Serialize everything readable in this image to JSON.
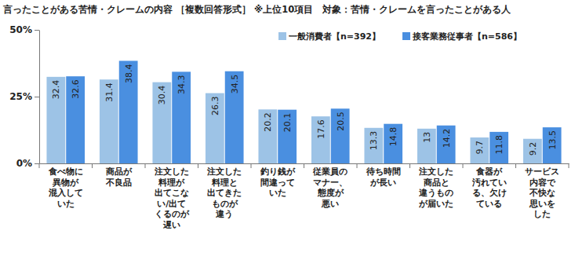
{
  "chart_data": {
    "type": "bar",
    "title": "言ったことがある苦情・クレームの内容 ［複数回答形式］ ※上位10項目　対象：苦情・クレームを言ったことがある人",
    "categories": [
      "食べ物に\n異物が\n混入して\nいた",
      "商品が\n不良品",
      "注文した\n料理が\n出てこな\nい/出て\nくるのが\n遅い",
      "注文した\n料理と\n出てきた\nものが\n違う",
      "釣り銭が\n間違って\nいた",
      "従業員の\nマナー、\n態度が\n悪い",
      "待ち時間\nが長い",
      "注文した\n商品と\n違うもの\nが届いた",
      "食器が\n汚れてい\nる、欠け\nている",
      "サービス\n内容で\n不快な\n思いを\nした"
    ],
    "series": [
      {
        "name": "一般消費者【n=392】",
        "color": "#9dc3e6",
        "values": [
          32.4,
          31.4,
          30.4,
          26.3,
          20.2,
          17.6,
          13.3,
          13.0,
          9.7,
          9.2
        ]
      },
      {
        "name": "接客業務従事者【n=586】",
        "color": "#4a8fe0",
        "values": [
          32.6,
          38.4,
          34.3,
          34.5,
          20.1,
          20.5,
          14.8,
          14.2,
          11.8,
          13.5
        ]
      }
    ],
    "ylim": [
      0,
      50
    ],
    "yticks": [
      {
        "value": 0,
        "label": "0%"
      },
      {
        "value": 25,
        "label": "25%"
      },
      {
        "value": 50,
        "label": "50%"
      }
    ],
    "grid": false,
    "legend": "top-right",
    "data_labels": true
  }
}
